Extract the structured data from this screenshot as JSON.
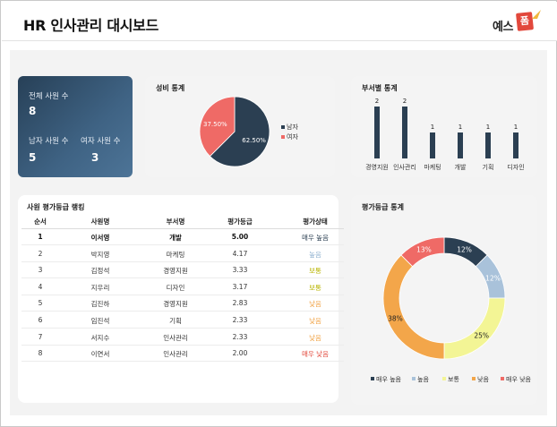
{
  "header": {
    "title": "HR 인사관리 대시보드",
    "logo_text": "예스",
    "logo_box": "폼"
  },
  "kpi": {
    "total_label": "전체 사원 수",
    "total_value": "8",
    "male_label": "남자 사원 수",
    "male_value": "5",
    "female_label": "여자 사원 수",
    "female_value": "3"
  },
  "gender_card": {
    "title": "성비 통계",
    "legend": [
      {
        "label": "남자",
        "color": "#2b3f52"
      },
      {
        "label": "여자",
        "color": "#ef6a66"
      }
    ]
  },
  "dept_card": {
    "title": "부서별 통계"
  },
  "ranking": {
    "title": "사원 평가등급 랭킹",
    "columns": [
      "순서",
      "사원명",
      "부서명",
      "평가등급",
      "평가상태"
    ],
    "rows": [
      {
        "rank": "1",
        "name": "이서영",
        "dept": "개발",
        "score": "5.00",
        "status": "매우 높음",
        "color": "#2b3f52"
      },
      {
        "rank": "2",
        "name": "박지영",
        "dept": "마케팅",
        "score": "4.17",
        "status": "높음",
        "color": "#8fb0cf"
      },
      {
        "rank": "3",
        "name": "김정석",
        "dept": "경영지원",
        "score": "3.33",
        "status": "보통",
        "color": "#b8b400"
      },
      {
        "rank": "4",
        "name": "지우리",
        "dept": "디자인",
        "score": "3.17",
        "status": "보통",
        "color": "#b8b400"
      },
      {
        "rank": "5",
        "name": "김진하",
        "dept": "경영지원",
        "score": "2.83",
        "status": "낮음",
        "color": "#f0a040"
      },
      {
        "rank": "6",
        "name": "임진석",
        "dept": "기획",
        "score": "2.33",
        "status": "낮음",
        "color": "#f0a040"
      },
      {
        "rank": "7",
        "name": "서지수",
        "dept": "인사관리",
        "score": "2.33",
        "status": "낮음",
        "color": "#f0a040"
      },
      {
        "rank": "8",
        "name": "이연서",
        "dept": "인사관리",
        "score": "2.00",
        "status": "매우 낮음",
        "color": "#e2483c"
      }
    ]
  },
  "grade_card": {
    "title": "평가등급 통계"
  },
  "chart_data": [
    {
      "type": "pie",
      "categories": [
        "남자",
        "여자"
      ],
      "values": [
        62.5,
        37.5
      ],
      "labels": [
        "62.50%",
        "37.50%"
      ],
      "colors": [
        "#2b3f52",
        "#ef6a66"
      ]
    },
    {
      "type": "bar",
      "categories": [
        "경영지원",
        "인사관리",
        "마케팅",
        "개발",
        "기획",
        "디자인"
      ],
      "values": [
        2,
        2,
        1,
        1,
        1,
        1
      ],
      "colors": [
        "#2b3f52"
      ]
    },
    {
      "type": "pie",
      "categories": [
        "매우 높음",
        "높음",
        "보통",
        "낮음",
        "매우 낮음"
      ],
      "values": [
        12.5,
        12.5,
        25,
        37.5,
        12.5
      ],
      "labels": [
        "12%",
        "12%",
        "25%",
        "38%",
        "13%"
      ],
      "colors": [
        "#2b3f52",
        "#a9c2da",
        "#f3f595",
        "#f3a64a",
        "#ef6a66"
      ],
      "legend_position": "bottom"
    }
  ]
}
